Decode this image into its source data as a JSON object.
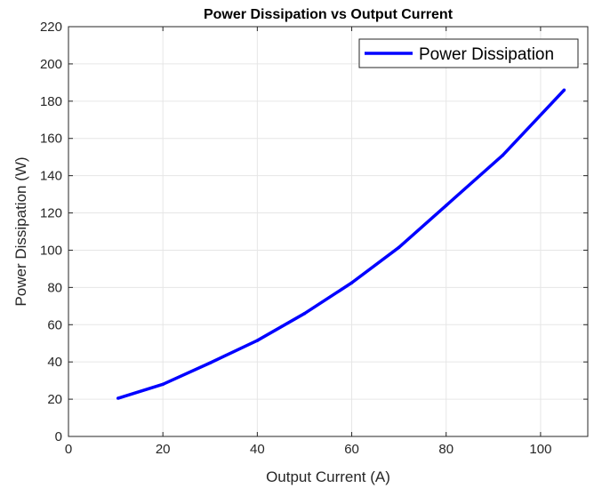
{
  "chart_data": {
    "type": "line",
    "title": "Power Dissipation vs Output Current",
    "xlabel": "Output Current (A)",
    "ylabel": "Power Dissipation (W)",
    "xlim": [
      0,
      110
    ],
    "ylim": [
      0,
      220
    ],
    "xticks": [
      0,
      20,
      40,
      60,
      80,
      100
    ],
    "yticks": [
      0,
      20,
      40,
      60,
      80,
      100,
      120,
      140,
      160,
      180,
      200,
      220
    ],
    "grid": true,
    "legend_position": "top-right",
    "series": [
      {
        "name": "Power Dissipation",
        "color": "#0000ff",
        "x": [
          10.5,
          20,
          30,
          40,
          50,
          60,
          70,
          80,
          92,
          105
        ],
        "y": [
          20.5,
          28,
          39.5,
          51.5,
          66,
          82.5,
          101.5,
          124,
          151,
          186
        ]
      }
    ]
  }
}
